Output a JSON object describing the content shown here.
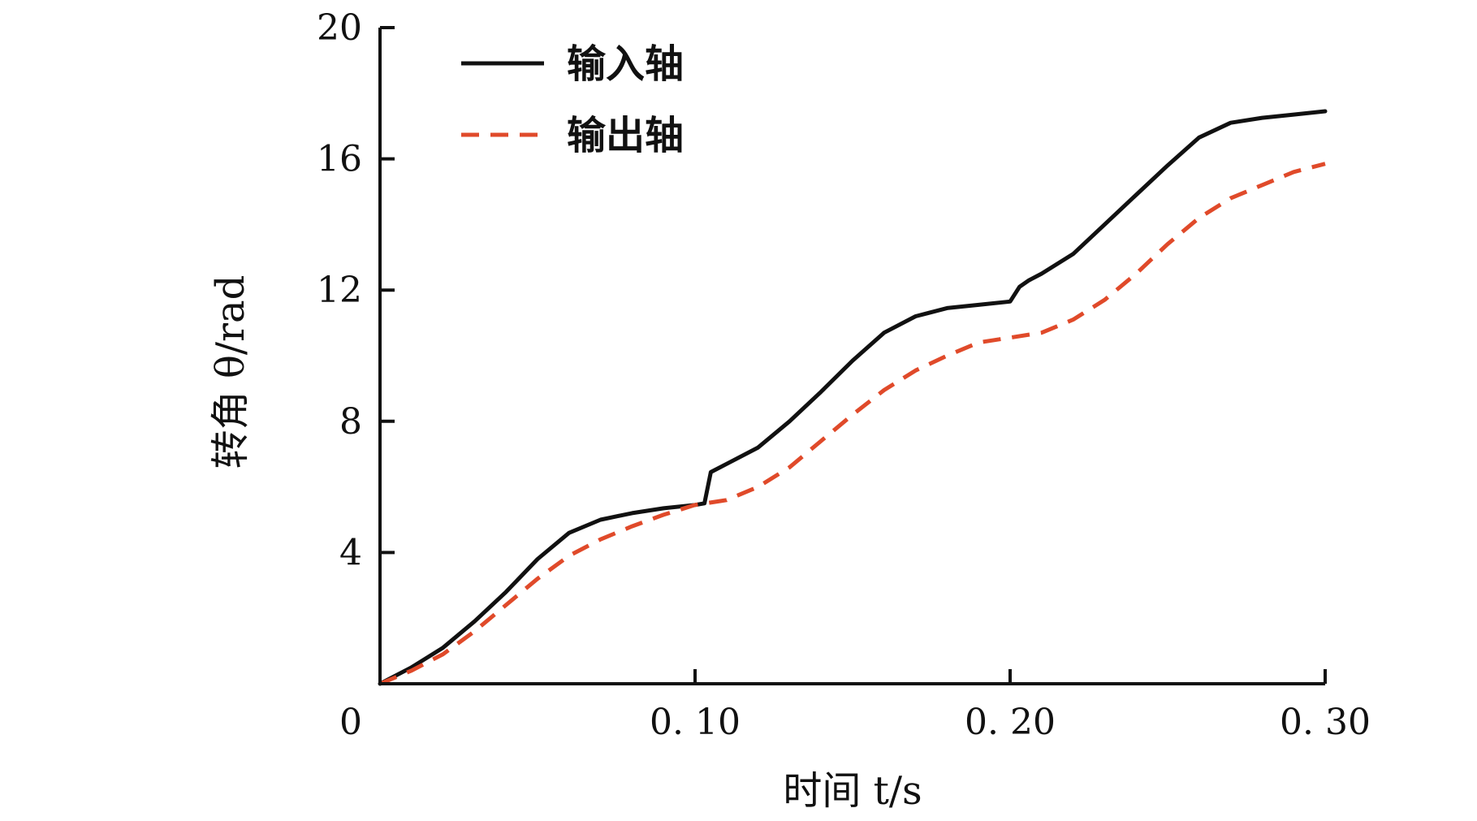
{
  "chart_data": {
    "type": "line",
    "title": "",
    "xlabel": "时间 t/s",
    "ylabel": "转角 θ/rad",
    "xlim": [
      0,
      0.3
    ],
    "ylim": [
      0,
      20
    ],
    "x_ticks": [
      {
        "value": 0,
        "label": "0"
      },
      {
        "value": 0.1,
        "label": "0. 10"
      },
      {
        "value": 0.2,
        "label": "0. 20"
      },
      {
        "value": 0.3,
        "label": "0. 30"
      }
    ],
    "y_ticks": [
      {
        "value": 4,
        "label": "4"
      },
      {
        "value": 8,
        "label": "8"
      },
      {
        "value": 12,
        "label": "12"
      },
      {
        "value": 16,
        "label": "16"
      },
      {
        "value": 20,
        "label": "20"
      }
    ],
    "grid": false,
    "legend_position": "top-left",
    "series": [
      {
        "name": "输入轴",
        "color": "#111111",
        "style": "solid",
        "x": [
          0,
          0.01,
          0.02,
          0.03,
          0.04,
          0.05,
          0.06,
          0.07,
          0.08,
          0.09,
          0.1,
          0.103,
          0.105,
          0.11,
          0.12,
          0.13,
          0.14,
          0.15,
          0.16,
          0.17,
          0.18,
          0.19,
          0.2,
          0.203,
          0.206,
          0.21,
          0.22,
          0.23,
          0.24,
          0.25,
          0.26,
          0.27,
          0.28,
          0.29,
          0.3
        ],
        "y": [
          0,
          0.5,
          1.1,
          1.9,
          2.8,
          3.8,
          4.6,
          5.0,
          5.2,
          5.35,
          5.45,
          5.5,
          6.45,
          6.7,
          7.2,
          8.0,
          8.9,
          9.85,
          10.7,
          11.2,
          11.45,
          11.55,
          11.65,
          12.1,
          12.3,
          12.5,
          13.1,
          14.0,
          14.9,
          15.8,
          16.65,
          17.1,
          17.25,
          17.35,
          17.45
        ]
      },
      {
        "name": "输出轴",
        "color": "#e04a2a",
        "style": "dashed",
        "x": [
          0,
          0.01,
          0.02,
          0.03,
          0.04,
          0.05,
          0.06,
          0.07,
          0.08,
          0.09,
          0.1,
          0.11,
          0.12,
          0.13,
          0.14,
          0.15,
          0.16,
          0.17,
          0.18,
          0.19,
          0.2,
          0.21,
          0.22,
          0.23,
          0.24,
          0.25,
          0.26,
          0.27,
          0.28,
          0.29,
          0.3
        ],
        "y": [
          0,
          0.4,
          0.9,
          1.6,
          2.4,
          3.2,
          3.9,
          4.4,
          4.8,
          5.15,
          5.45,
          5.6,
          6.0,
          6.6,
          7.4,
          8.2,
          8.95,
          9.55,
          10.0,
          10.4,
          10.55,
          10.7,
          11.1,
          11.7,
          12.5,
          13.4,
          14.2,
          14.8,
          15.2,
          15.6,
          15.85
        ]
      }
    ]
  }
}
